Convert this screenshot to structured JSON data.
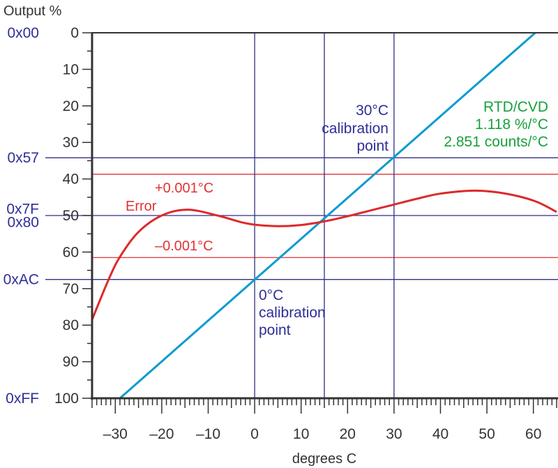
{
  "chart_data": {
    "type": "line",
    "title": "",
    "xlabel": "degrees C",
    "ylabel": "Output %",
    "xlim": [
      -35,
      65
    ],
    "ylim": [
      100,
      0
    ],
    "y_inverted": true,
    "grid": false,
    "x_ticks": [
      -30,
      -20,
      -10,
      0,
      10,
      20,
      30,
      40,
      50,
      60
    ],
    "y_ticks": [
      0,
      10,
      20,
      30,
      40,
      50,
      60,
      70,
      80,
      90,
      100
    ],
    "hex_labels": [
      {
        "label": "0x00",
        "y": 0
      },
      {
        "label": "0x57",
        "y": 34.2
      },
      {
        "label": "0x7F",
        "y": 48.2
      },
      {
        "label": "0x80",
        "y": 51.8
      },
      {
        "label": "0xAC",
        "y": 67.5
      },
      {
        "label": "0xFF",
        "y": 100
      }
    ],
    "h_lines_blue": [
      34.2,
      50,
      67.5
    ],
    "h_lines_red": [
      38.7,
      61.5
    ],
    "v_lines": [
      0,
      15,
      30
    ],
    "series": [
      {
        "name": "RTD/CVD",
        "color": "#0a9bd0",
        "x": [
          -29,
          60.4
        ],
        "y": [
          100,
          0
        ]
      },
      {
        "name": "Error",
        "color": "#dd2a2a",
        "x": [
          -35,
          -31.5,
          -29,
          -25,
          -20,
          -14.5,
          -8,
          -3,
          0,
          5,
          10,
          15,
          20,
          25,
          30,
          35,
          40,
          47,
          52,
          57,
          61,
          65
        ],
        "y": [
          78.5,
          67.7,
          61.3,
          54.5,
          50,
          48.4,
          50,
          51.8,
          52.5,
          52.9,
          52.6,
          51.6,
          50.2,
          48.6,
          47,
          45.4,
          44,
          43.2,
          43.6,
          44.8,
          46.4,
          49
        ]
      }
    ],
    "annotations": {
      "plus": "+0.001°C",
      "minus": "–0.001°C",
      "error": "Error",
      "cal30": [
        "30°C",
        "calibration",
        "point"
      ],
      "cal0": [
        "0°C",
        "calibration",
        "point"
      ],
      "legend": [
        "RTD/CVD",
        "1.118 %/°C",
        "2.851 counts/°C"
      ]
    },
    "colors": {
      "axis": "#333333",
      "blue_lines": "#2e2e8a",
      "red_lines": "#e03333",
      "label_blue": "#2e2e9a",
      "green": "#19a03c"
    }
  }
}
